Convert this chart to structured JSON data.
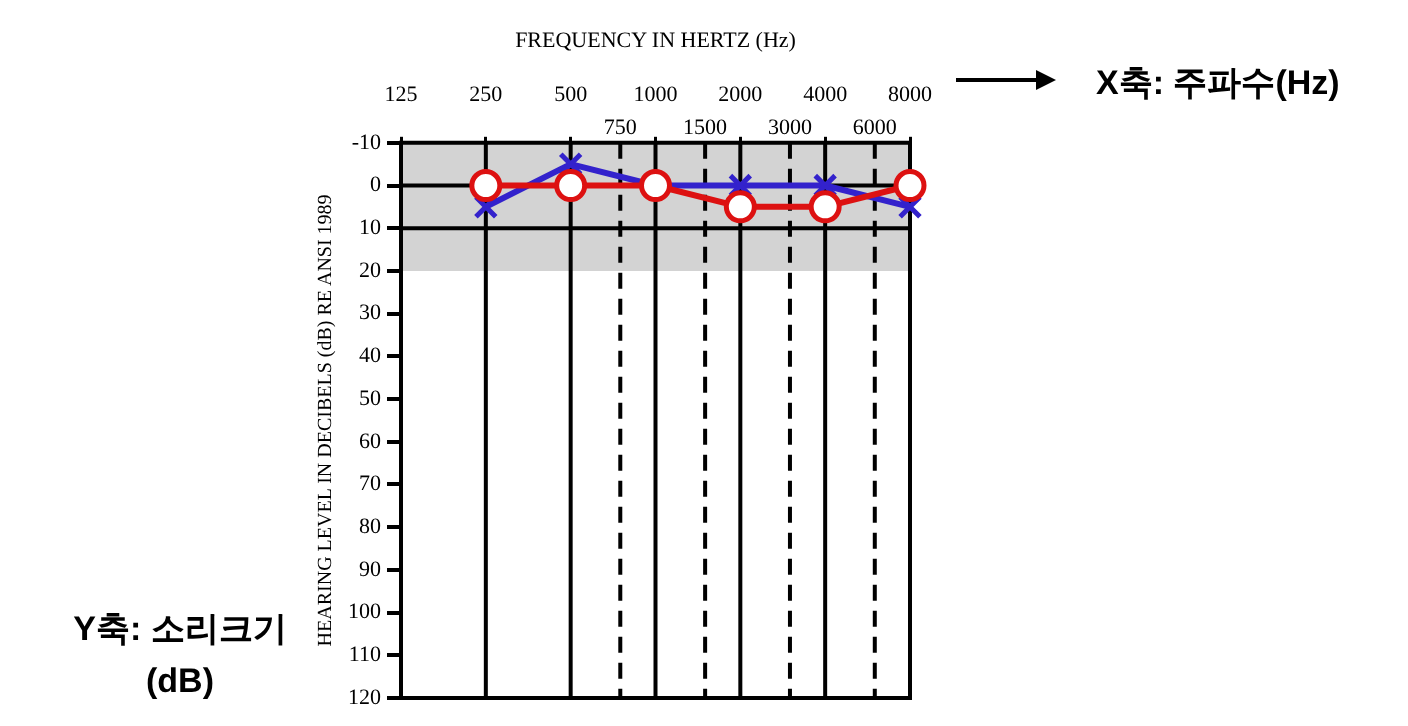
{
  "chart_data": {
    "type": "line",
    "xlabel": "FREQUENCY IN HERTZ (Hz)",
    "ylabel": "HEARING LEVEL IN DECIBELS (dB) RE ANSI 1989",
    "x": [
      250,
      500,
      1000,
      2000,
      4000,
      8000
    ],
    "series": [
      {
        "color": "#dd1111",
        "values": [
          0,
          0,
          0,
          5,
          5,
          0
        ],
        "marker": "circle"
      },
      {
        "color": "#3322cc",
        "values": [
          5,
          -5,
          0,
          0,
          0,
          5
        ],
        "marker": "cross"
      }
    ],
    "log": "x",
    "xlim": [
      125,
      8000
    ],
    "xticks": [
      125,
      250,
      500,
      1000,
      2000,
      4000,
      8000
    ],
    "ylim": [
      120,
      -10
    ],
    "yticks": [
      -10,
      0,
      10,
      20,
      30,
      40,
      50,
      60,
      70,
      80,
      90,
      100,
      110,
      120
    ],
    "grid": "x",
    "legend": false,
    "bands": [
      {
        "axis": "y",
        "from": -10,
        "to": 20,
        "color": "#d3d3d3"
      }
    ],
    "ref_lines": [
      {
        "axis": "y",
        "value": 0,
        "color": "#000000"
      },
      {
        "axis": "y",
        "value": 10,
        "color": "#000000"
      },
      {
        "axis": "x",
        "value": 750,
        "label": "750",
        "color": "#000000",
        "line_style": "dashed"
      },
      {
        "axis": "x",
        "value": 1500,
        "label": "1500",
        "color": "#000000",
        "line_style": "dashed"
      },
      {
        "axis": "x",
        "value": 3000,
        "label": "3000",
        "color": "#000000",
        "line_style": "dashed"
      },
      {
        "axis": "x",
        "value": 6000,
        "label": "6000",
        "color": "#000000",
        "line_style": "dashed"
      }
    ],
    "annotations": [
      "X축: 주파수(Hz)",
      "Y축: 소리크기 (dB)"
    ]
  }
}
